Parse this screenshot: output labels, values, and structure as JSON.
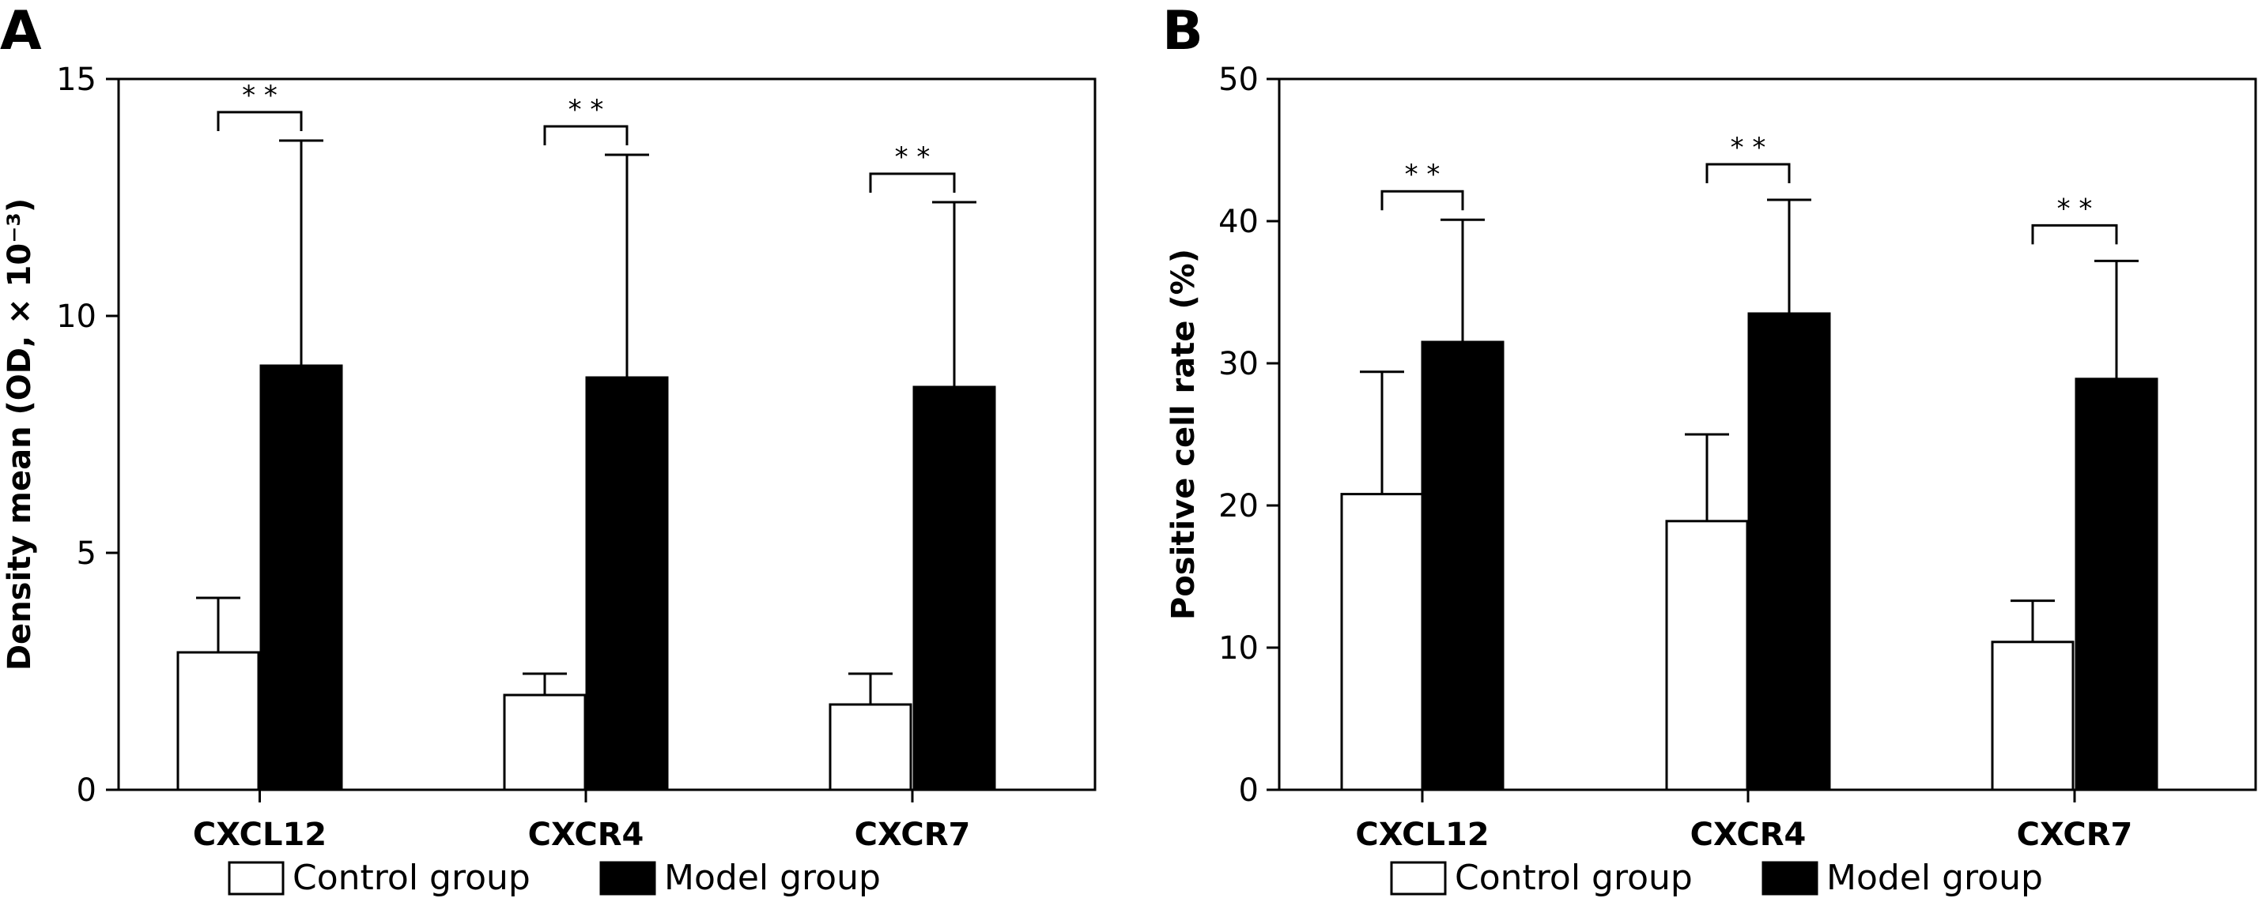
{
  "chart_data": [
    {
      "type": "bar",
      "panel_label": "A",
      "ylabel": "Density mean (OD, × 10⁻³)",
      "ylim": [
        0,
        15
      ],
      "yticks": [
        0,
        5,
        10,
        15
      ],
      "categories": [
        "CXCL12",
        "CXCR4",
        "CXCR7"
      ],
      "series": [
        {
          "name": "Control group",
          "fill": "#ffffff",
          "values": [
            2.9,
            2.0,
            1.8
          ],
          "errors": [
            1.15,
            0.45,
            0.65
          ]
        },
        {
          "name": "Model group",
          "fill": "#000000",
          "values": [
            8.95,
            8.7,
            8.5
          ],
          "errors": [
            4.75,
            4.7,
            3.9
          ]
        }
      ],
      "significance": [
        {
          "category": "CXCL12",
          "label": "* *",
          "level": 14.3
        },
        {
          "category": "CXCR4",
          "label": "* *",
          "level": 14.0
        },
        {
          "category": "CXCR7",
          "label": "* *",
          "level": 13.0
        }
      ],
      "legend_position": "bottom"
    },
    {
      "type": "bar",
      "panel_label": "B",
      "ylabel": "Positive cell rate (%)",
      "ylim": [
        0,
        50
      ],
      "yticks": [
        0,
        10,
        20,
        30,
        40,
        50
      ],
      "categories": [
        "CXCL12",
        "CXCR4",
        "CXCR7"
      ],
      "series": [
        {
          "name": "Control group",
          "fill": "#ffffff",
          "values": [
            20.8,
            18.9,
            10.4
          ],
          "errors": [
            8.6,
            6.1,
            2.9
          ]
        },
        {
          "name": "Model group",
          "fill": "#000000",
          "values": [
            31.5,
            33.5,
            28.9
          ],
          "errors": [
            8.6,
            8.0,
            8.3
          ]
        }
      ],
      "significance": [
        {
          "category": "CXCL12",
          "label": "* *",
          "level": 42.1
        },
        {
          "category": "CXCR4",
          "label": "* *",
          "level": 44.0
        },
        {
          "category": "CXCR7",
          "label": "* *",
          "level": 39.7
        }
      ],
      "legend_position": "bottom"
    }
  ]
}
